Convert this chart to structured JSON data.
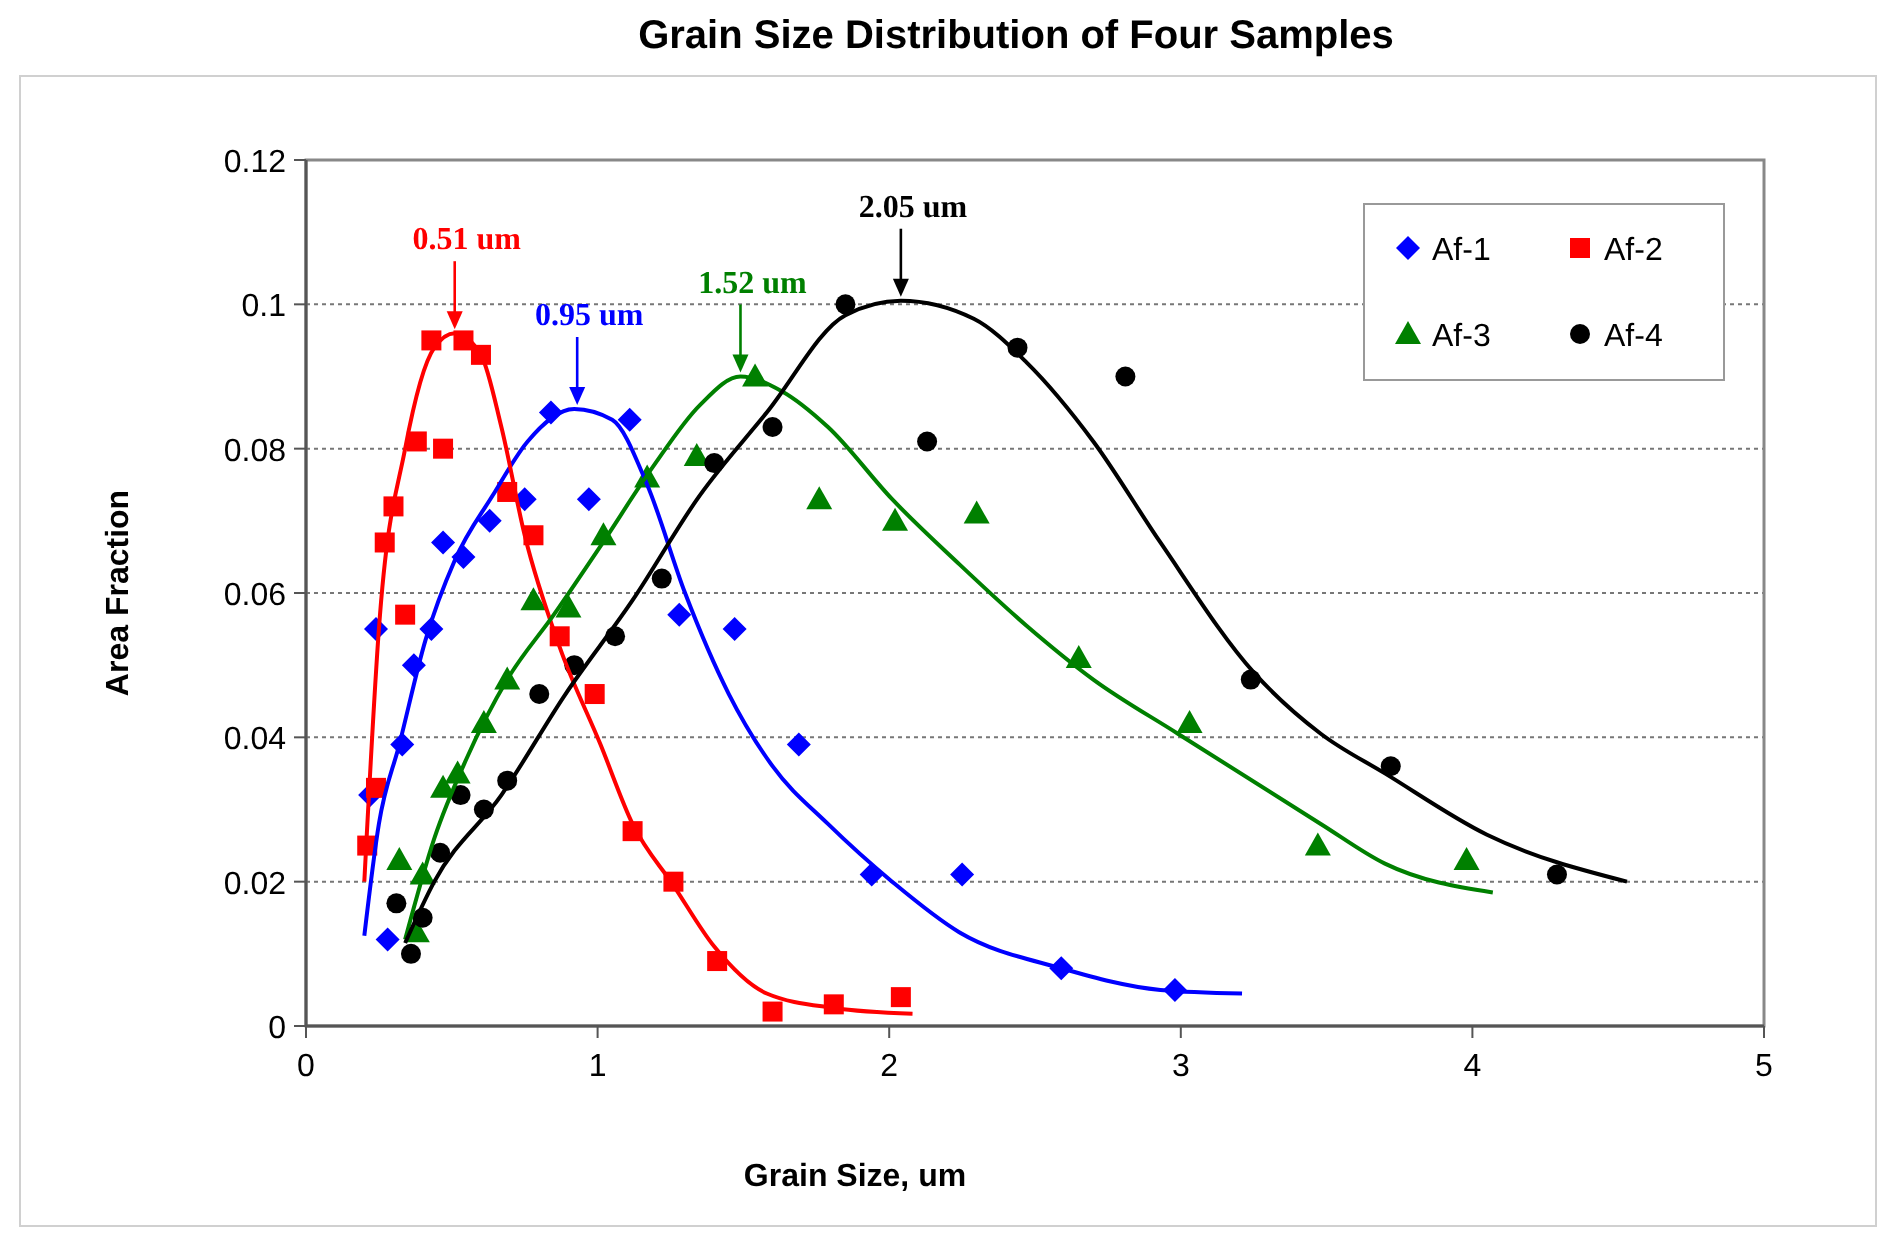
{
  "chart_data": {
    "type": "scatter",
    "title": "Grain Size Distribution of Four Samples",
    "xlabel": "Grain Size, um",
    "ylabel": "Area Fraction",
    "xlim": [
      0,
      5
    ],
    "xticks": [
      0,
      1,
      2,
      3,
      4,
      5
    ],
    "ylim": [
      0,
      0.12
    ],
    "yticks": [
      0,
      0.02,
      0.04,
      0.06,
      0.08,
      0.1,
      0.12
    ],
    "grid": "y",
    "legend": "top right",
    "series": [
      {
        "name": "Af-1",
        "marker": "diamond",
        "color": "#0000ff",
        "x": [
          0.22,
          0.24,
          0.28,
          0.33,
          0.37,
          0.43,
          0.47,
          0.54,
          0.63,
          0.75,
          0.84,
          0.97,
          1.11,
          1.28,
          1.47,
          1.69,
          1.94,
          2.25,
          2.59,
          2.98
        ],
        "values": [
          0.032,
          0.055,
          0.012,
          0.039,
          0.05,
          0.055,
          0.067,
          0.065,
          0.07,
          0.073,
          0.085,
          0.073,
          0.084,
          0.057,
          0.055,
          0.039,
          0.021,
          0.021,
          0.008,
          0.005
        ]
      },
      {
        "name": "Af-2",
        "marker": "square",
        "color": "#ff0000",
        "x": [
          0.21,
          0.24,
          0.27,
          0.3,
          0.34,
          0.38,
          0.43,
          0.47,
          0.54,
          0.6,
          0.69,
          0.78,
          0.87,
          0.99,
          1.12,
          1.26,
          1.41,
          1.6,
          1.81,
          2.04
        ],
        "values": [
          0.025,
          0.033,
          0.067,
          0.072,
          0.057,
          0.081,
          0.095,
          0.08,
          0.095,
          0.093,
          0.074,
          0.068,
          0.054,
          0.046,
          0.027,
          0.02,
          0.009,
          0.002,
          0.003,
          0.004
        ]
      },
      {
        "name": "Af-3",
        "marker": "triangle",
        "color": "#008000",
        "x": [
          0.32,
          0.38,
          0.4,
          0.47,
          0.52,
          0.61,
          0.69,
          0.78,
          0.9,
          1.02,
          1.17,
          1.34,
          1.54,
          1.76,
          2.02,
          2.3,
          2.65,
          3.03,
          3.47,
          3.98
        ],
        "values": [
          0.023,
          0.013,
          0.021,
          0.033,
          0.035,
          0.042,
          0.048,
          0.059,
          0.058,
          0.068,
          0.076,
          0.079,
          0.09,
          0.073,
          0.07,
          0.071,
          0.051,
          0.042,
          0.025,
          0.023
        ]
      },
      {
        "name": "Af-4",
        "marker": "circle",
        "color": "#000000",
        "x": [
          0.31,
          0.36,
          0.4,
          0.46,
          0.53,
          0.61,
          0.69,
          0.8,
          0.92,
          1.06,
          1.22,
          1.4,
          1.6,
          1.85,
          2.13,
          2.44,
          2.81,
          3.24,
          3.72,
          4.29
        ],
        "values": [
          0.017,
          0.01,
          0.015,
          0.024,
          0.032,
          0.03,
          0.034,
          0.046,
          0.05,
          0.054,
          0.062,
          0.078,
          0.083,
          0.1,
          0.081,
          0.094,
          0.09,
          0.048,
          0.036,
          0.021
        ]
      },
      {
        "type": "line",
        "color": "#0000ff",
        "x": [
          0.2,
          0.25,
          0.32,
          0.41,
          0.51,
          0.64,
          0.76,
          0.92,
          1.05,
          1.17,
          1.3,
          1.45,
          1.6,
          1.79,
          2.01,
          2.24,
          2.59,
          2.93,
          3.21
        ],
        "values": [
          0.0125,
          0.028,
          0.039,
          0.0535,
          0.0645,
          0.0735,
          0.081,
          0.0855,
          0.084,
          0.075,
          0.06,
          0.046,
          0.036,
          0.028,
          0.02,
          0.013,
          0.008,
          0.005,
          0.0045
        ]
      },
      {
        "type": "line",
        "color": "#ff0000",
        "x": [
          0.2,
          0.25,
          0.34,
          0.44,
          0.51,
          0.6,
          0.67,
          0.75,
          0.87,
          1.01,
          1.12,
          1.26,
          1.4,
          1.58,
          1.81,
          2.08
        ],
        "values": [
          0.02,
          0.055,
          0.08,
          0.094,
          0.096,
          0.093,
          0.083,
          0.068,
          0.0525,
          0.039,
          0.028,
          0.0195,
          0.011,
          0.0045,
          0.0025,
          0.0017
        ]
      },
      {
        "type": "line",
        "color": "#008000",
        "x": [
          0.34,
          0.44,
          0.55,
          0.69,
          0.85,
          1.01,
          1.19,
          1.35,
          1.49,
          1.63,
          1.79,
          2.01,
          2.24,
          2.47,
          2.7,
          2.99,
          3.48,
          3.7,
          4.07
        ],
        "values": [
          0.012,
          0.026,
          0.037,
          0.048,
          0.057,
          0.0665,
          0.0775,
          0.086,
          0.09,
          0.088,
          0.083,
          0.073,
          0.064,
          0.0555,
          0.048,
          0.0405,
          0.028,
          0.0225,
          0.0185
        ]
      },
      {
        "type": "line",
        "color": "#000000",
        "x": [
          0.34,
          0.44,
          0.67,
          0.89,
          1.12,
          1.35,
          1.58,
          1.85,
          2.04,
          2.29,
          2.47,
          2.7,
          2.93,
          3.25,
          3.48,
          3.7,
          4.05,
          4.53
        ],
        "values": [
          0.0115,
          0.02,
          0.032,
          0.046,
          0.059,
          0.0735,
          0.085,
          0.0985,
          0.1005,
          0.098,
          0.092,
          0.081,
          0.067,
          0.049,
          0.0405,
          0.035,
          0.0265,
          0.02
        ]
      }
    ],
    "annotations": [
      {
        "text": "0.95 um",
        "x": 0.93,
        "y": 0.0855
      },
      {
        "text": "0.51 um",
        "x": 0.51,
        "y": 0.096
      },
      {
        "text": "1.52 um",
        "x": 1.49,
        "y": 0.09
      },
      {
        "text": "2.05 um",
        "x": 2.04,
        "y": 0.1005
      }
    ]
  }
}
